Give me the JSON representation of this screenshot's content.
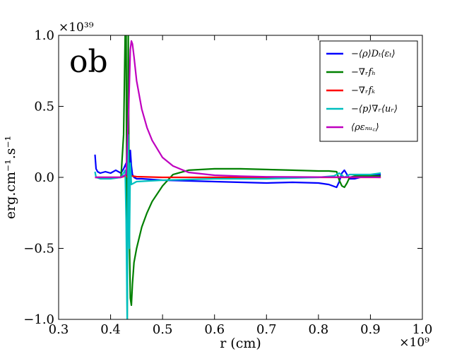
{
  "chart_data": {
    "type": "line",
    "panel_label": "ob",
    "xlabel": "r (cm)",
    "ylabel": "erg.cm⁻¹.s⁻¹",
    "x_scale_label": "×10⁹",
    "y_scale_label": "×10³⁹",
    "xlim": [
      0.3,
      1.0
    ],
    "ylim": [
      -1.0,
      1.0
    ],
    "x_ticks": [
      0.3,
      0.4,
      0.5,
      0.6,
      0.7,
      0.8,
      0.9,
      1.0
    ],
    "x_tick_labels": [
      "0.3",
      "0.4",
      "0.5",
      "0.6",
      "0.7",
      "0.8",
      "0.9",
      "1.0"
    ],
    "y_ticks": [
      -1.0,
      -0.5,
      0.0,
      0.5,
      1.0
    ],
    "y_tick_labels": [
      "−1.0",
      "−0.5",
      "0.0",
      "0.5",
      "1.0"
    ],
    "legend_position": "top-right",
    "series": [
      {
        "name": "−⟨ρ⟩Dₜ⟨εₜ⟩",
        "color": "#0000ff",
        "x": [
          0.37,
          0.372,
          0.375,
          0.38,
          0.39,
          0.4,
          0.41,
          0.42,
          0.425,
          0.43,
          0.432,
          0.434,
          0.436,
          0.438,
          0.44,
          0.442,
          0.445,
          0.45,
          0.46,
          0.48,
          0.5,
          0.55,
          0.6,
          0.65,
          0.7,
          0.75,
          0.8,
          0.82,
          0.835,
          0.84,
          0.845,
          0.85,
          0.855,
          0.86,
          0.87,
          0.88,
          0.9,
          0.92
        ],
        "y": [
          0.16,
          0.06,
          0.04,
          0.03,
          0.04,
          0.03,
          0.05,
          0.03,
          0.06,
          0.1,
          -0.05,
          0.15,
          -0.2,
          0.19,
          0.08,
          0.02,
          0.0,
          -0.01,
          -0.01,
          -0.015,
          -0.02,
          -0.025,
          -0.03,
          -0.035,
          -0.04,
          -0.035,
          -0.04,
          -0.05,
          -0.07,
          -0.03,
          0.03,
          0.05,
          0.02,
          -0.01,
          -0.01,
          0.0,
          0.01,
          0.02
        ]
      },
      {
        "name": "−∇ᵣfₕ",
        "color": "#008000",
        "x": [
          0.37,
          0.4,
          0.42,
          0.425,
          0.428,
          0.43,
          0.432,
          0.434,
          0.436,
          0.438,
          0.44,
          0.442,
          0.445,
          0.45,
          0.46,
          0.47,
          0.48,
          0.5,
          0.52,
          0.55,
          0.6,
          0.65,
          0.7,
          0.75,
          0.8,
          0.82,
          0.835,
          0.84,
          0.845,
          0.85,
          0.855,
          0.86,
          0.87,
          0.88,
          0.9,
          0.92
        ],
        "y": [
          0.0,
          0.0,
          0.0,
          0.3,
          1.0,
          1.0,
          -1.0,
          1.0,
          -0.4,
          -0.85,
          -0.9,
          -0.75,
          -0.6,
          -0.5,
          -0.35,
          -0.25,
          -0.17,
          -0.06,
          0.02,
          0.05,
          0.06,
          0.06,
          0.055,
          0.05,
          0.045,
          0.045,
          0.04,
          -0.02,
          -0.06,
          -0.07,
          -0.04,
          0.0,
          0.01,
          0.01,
          0.01,
          0.01
        ]
      },
      {
        "name": "−∇ᵣfₖ",
        "color": "#ff0000",
        "x": [
          0.37,
          0.4,
          0.42,
          0.43,
          0.433,
          0.436,
          0.44,
          0.45,
          0.5,
          0.55,
          0.6,
          0.7,
          0.8,
          0.85,
          0.9,
          0.92
        ],
        "y": [
          0.0,
          0.0,
          0.0,
          0.01,
          0.0,
          0.02,
          0.01,
          0.005,
          0.0,
          0.0,
          0.0,
          0.0,
          0.0,
          0.0,
          0.0,
          0.0
        ]
      },
      {
        "name": "−⟨p⟩∇ᵣ⟨uᵣ⟩",
        "color": "#00bfbf",
        "x": [
          0.37,
          0.372,
          0.38,
          0.4,
          0.42,
          0.428,
          0.43,
          0.432,
          0.434,
          0.436,
          0.438,
          0.44,
          0.45,
          0.5,
          0.6,
          0.7,
          0.8,
          0.83,
          0.84,
          0.85,
          0.86,
          0.88,
          0.9,
          0.92
        ],
        "y": [
          0.04,
          0.0,
          -0.01,
          -0.01,
          0.0,
          0.05,
          -0.3,
          -1.0,
          0.3,
          -0.5,
          0.1,
          -0.05,
          -0.03,
          -0.02,
          -0.01,
          -0.01,
          0.0,
          0.01,
          0.03,
          0.0,
          0.02,
          0.02,
          0.02,
          0.03
        ]
      },
      {
        "name": "⟨ρεₙᵤ꜀⟩",
        "color": "#bf00bf",
        "x": [
          0.37,
          0.4,
          0.42,
          0.43,
          0.435,
          0.438,
          0.44,
          0.442,
          0.445,
          0.45,
          0.46,
          0.47,
          0.48,
          0.5,
          0.52,
          0.55,
          0.6,
          0.65,
          0.7,
          0.8,
          0.9,
          0.92
        ],
        "y": [
          0.0,
          0.0,
          0.0,
          0.02,
          0.5,
          0.9,
          0.96,
          0.94,
          0.85,
          0.68,
          0.48,
          0.35,
          0.26,
          0.14,
          0.08,
          0.035,
          0.015,
          0.008,
          0.004,
          0.002,
          0.001,
          0.0
        ]
      }
    ]
  }
}
